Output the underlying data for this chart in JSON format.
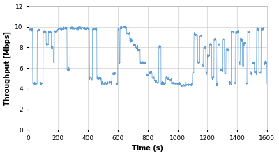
{
  "title": "",
  "xlabel": "Time (s)",
  "ylabel": "Throughput [Mbps]",
  "xlim": [
    0,
    1600
  ],
  "ylim": [
    0,
    12
  ],
  "xticks": [
    0,
    200,
    400,
    600,
    800,
    1000,
    1200,
    1400,
    1600
  ],
  "yticks": [
    0,
    2,
    4,
    6,
    8,
    10,
    12
  ],
  "line_color": "#5b9bd5",
  "bg_color": "#ffffff",
  "grid_color": "#d0d0d0",
  "figsize": [
    4.0,
    2.25
  ],
  "dpi": 100,
  "segments": [
    {
      "t_start": 0,
      "t_end": 30,
      "level": 9.7
    },
    {
      "t_start": 30,
      "t_end": 60,
      "level": 4.5
    },
    {
      "t_start": 60,
      "t_end": 80,
      "level": 9.7
    },
    {
      "t_start": 80,
      "t_end": 100,
      "level": 4.5
    },
    {
      "t_start": 100,
      "t_end": 120,
      "level": 9.5
    },
    {
      "t_start": 120,
      "t_end": 135,
      "level": 8.3
    },
    {
      "t_start": 135,
      "t_end": 155,
      "level": 9.5
    },
    {
      "t_start": 155,
      "t_end": 168,
      "level": 8.0
    },
    {
      "t_start": 168,
      "t_end": 175,
      "level": 6.5
    },
    {
      "t_start": 175,
      "t_end": 200,
      "level": 9.6
    },
    {
      "t_start": 200,
      "t_end": 210,
      "level": 9.8
    },
    {
      "t_start": 210,
      "t_end": 230,
      "level": 9.8
    },
    {
      "t_start": 230,
      "t_end": 260,
      "level": 9.9
    },
    {
      "t_start": 260,
      "t_end": 280,
      "level": 5.9
    },
    {
      "t_start": 280,
      "t_end": 330,
      "level": 9.85
    },
    {
      "t_start": 330,
      "t_end": 360,
      "level": 9.9
    },
    {
      "t_start": 360,
      "t_end": 390,
      "level": 9.9
    },
    {
      "t_start": 390,
      "t_end": 410,
      "level": 9.85
    },
    {
      "t_start": 410,
      "t_end": 430,
      "level": 5.0
    },
    {
      "t_start": 430,
      "t_end": 460,
      "level": 9.8
    },
    {
      "t_start": 460,
      "t_end": 490,
      "level": 5.0
    },
    {
      "t_start": 490,
      "t_end": 500,
      "level": 4.5
    },
    {
      "t_start": 500,
      "t_end": 530,
      "level": 4.5
    },
    {
      "t_start": 530,
      "t_end": 560,
      "level": 4.6
    },
    {
      "t_start": 560,
      "t_end": 590,
      "level": 5.5
    },
    {
      "t_start": 590,
      "t_end": 600,
      "level": 4.5
    },
    {
      "t_start": 600,
      "t_end": 610,
      "level": 9.8
    },
    {
      "t_start": 610,
      "t_end": 615,
      "level": 6.5
    },
    {
      "t_start": 615,
      "t_end": 640,
      "level": 9.9
    },
    {
      "t_start": 640,
      "t_end": 660,
      "level": 10.0
    },
    {
      "t_start": 660,
      "t_end": 680,
      "level": 9.4
    },
    {
      "t_start": 680,
      "t_end": 700,
      "level": 8.7
    },
    {
      "t_start": 700,
      "t_end": 720,
      "level": 8.2
    },
    {
      "t_start": 720,
      "t_end": 735,
      "level": 8.0
    },
    {
      "t_start": 735,
      "t_end": 750,
      "level": 7.8
    },
    {
      "t_start": 750,
      "t_end": 770,
      "level": 6.5
    },
    {
      "t_start": 770,
      "t_end": 790,
      "level": 6.5
    },
    {
      "t_start": 790,
      "t_end": 810,
      "level": 5.3
    },
    {
      "t_start": 810,
      "t_end": 830,
      "level": 5.5
    },
    {
      "t_start": 830,
      "t_end": 845,
      "level": 5.0
    },
    {
      "t_start": 845,
      "t_end": 860,
      "level": 4.8
    },
    {
      "t_start": 860,
      "t_end": 875,
      "level": 4.6
    },
    {
      "t_start": 875,
      "t_end": 890,
      "level": 8.1
    },
    {
      "t_start": 890,
      "t_end": 920,
      "level": 4.5
    },
    {
      "t_start": 920,
      "t_end": 940,
      "level": 5.0
    },
    {
      "t_start": 940,
      "t_end": 960,
      "level": 4.8
    },
    {
      "t_start": 960,
      "t_end": 990,
      "level": 4.5
    },
    {
      "t_start": 990,
      "t_end": 1020,
      "level": 4.5
    },
    {
      "t_start": 1020,
      "t_end": 1050,
      "level": 4.3
    },
    {
      "t_start": 1050,
      "t_end": 1080,
      "level": 4.4
    },
    {
      "t_start": 1080,
      "t_end": 1100,
      "level": 4.4
    },
    {
      "t_start": 1100,
      "t_end": 1110,
      "level": 5.5
    },
    {
      "t_start": 1110,
      "t_end": 1120,
      "level": 9.3
    },
    {
      "t_start": 1120,
      "t_end": 1135,
      "level": 9.2
    },
    {
      "t_start": 1135,
      "t_end": 1150,
      "level": 6.5
    },
    {
      "t_start": 1150,
      "t_end": 1165,
      "level": 9.1
    },
    {
      "t_start": 1165,
      "t_end": 1175,
      "level": 6.2
    },
    {
      "t_start": 1175,
      "t_end": 1190,
      "level": 8.0
    },
    {
      "t_start": 1190,
      "t_end": 1200,
      "level": 5.5
    },
    {
      "t_start": 1200,
      "t_end": 1215,
      "level": 7.2
    },
    {
      "t_start": 1215,
      "t_end": 1230,
      "level": 8.3
    },
    {
      "t_start": 1230,
      "t_end": 1245,
      "level": 5.0
    },
    {
      "t_start": 1245,
      "t_end": 1260,
      "level": 8.8
    },
    {
      "t_start": 1260,
      "t_end": 1270,
      "level": 4.4
    },
    {
      "t_start": 1270,
      "t_end": 1285,
      "level": 8.3
    },
    {
      "t_start": 1285,
      "t_end": 1300,
      "level": 5.8
    },
    {
      "t_start": 1300,
      "t_end": 1315,
      "level": 8.8
    },
    {
      "t_start": 1315,
      "t_end": 1325,
      "level": 5.5
    },
    {
      "t_start": 1325,
      "t_end": 1345,
      "level": 7.8
    },
    {
      "t_start": 1345,
      "t_end": 1360,
      "level": 4.5
    },
    {
      "t_start": 1360,
      "t_end": 1380,
      "level": 9.5
    },
    {
      "t_start": 1380,
      "t_end": 1390,
      "level": 4.5
    },
    {
      "t_start": 1390,
      "t_end": 1410,
      "level": 9.5
    },
    {
      "t_start": 1410,
      "t_end": 1420,
      "level": 6.5
    },
    {
      "t_start": 1420,
      "t_end": 1435,
      "level": 8.8
    },
    {
      "t_start": 1435,
      "t_end": 1445,
      "level": 6.2
    },
    {
      "t_start": 1445,
      "t_end": 1460,
      "level": 8.4
    },
    {
      "t_start": 1460,
      "t_end": 1470,
      "level": 4.5
    },
    {
      "t_start": 1470,
      "t_end": 1485,
      "level": 9.5
    },
    {
      "t_start": 1485,
      "t_end": 1500,
      "level": 5.5
    },
    {
      "t_start": 1500,
      "t_end": 1515,
      "level": 6.5
    },
    {
      "t_start": 1515,
      "t_end": 1530,
      "level": 5.5
    },
    {
      "t_start": 1530,
      "t_end": 1545,
      "level": 9.8
    },
    {
      "t_start": 1545,
      "t_end": 1560,
      "level": 5.5
    },
    {
      "t_start": 1560,
      "t_end": 1580,
      "level": 9.8
    },
    {
      "t_start": 1580,
      "t_end": 1600,
      "level": 6.5
    }
  ]
}
